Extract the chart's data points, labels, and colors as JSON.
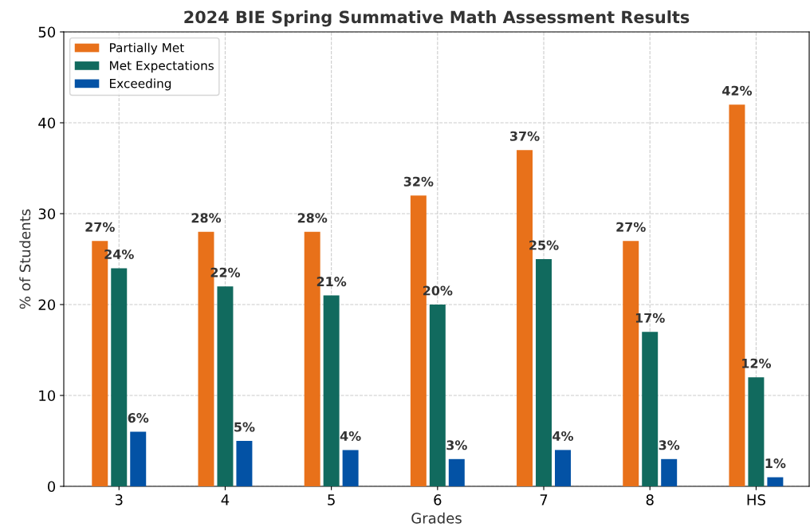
{
  "chart_data": {
    "type": "bar",
    "title": "2024 BIE Spring Summative Math Assessment Results",
    "xlabel": "Grades",
    "ylabel": "% of Students",
    "categories": [
      "3",
      "4",
      "5",
      "6",
      "7",
      "8",
      "HS"
    ],
    "series": [
      {
        "name": "Partially Met",
        "color": "#e8711a",
        "values": [
          27,
          28,
          28,
          32,
          37,
          27,
          42
        ],
        "value_labels": [
          "27%",
          "28%",
          "28%",
          "32%",
          "37%",
          "27%",
          "42%"
        ]
      },
      {
        "name": "Met Expectations",
        "color": "#116a5e",
        "values": [
          24,
          22,
          21,
          20,
          25,
          17,
          12
        ],
        "value_labels": [
          "24%",
          "22%",
          "21%",
          "20%",
          "25%",
          "17%",
          "12%"
        ]
      },
      {
        "name": "Exceeding",
        "color": "#0352a5",
        "values": [
          6,
          5,
          4,
          3,
          4,
          3,
          1
        ],
        "value_labels": [
          "6%",
          "5%",
          "4%",
          "3%",
          "4%",
          "3%",
          "1%"
        ]
      }
    ],
    "ylim": [
      0,
      50
    ],
    "yticks": [
      0,
      10,
      20,
      30,
      40,
      50
    ],
    "grid": true,
    "legend": "top left"
  }
}
